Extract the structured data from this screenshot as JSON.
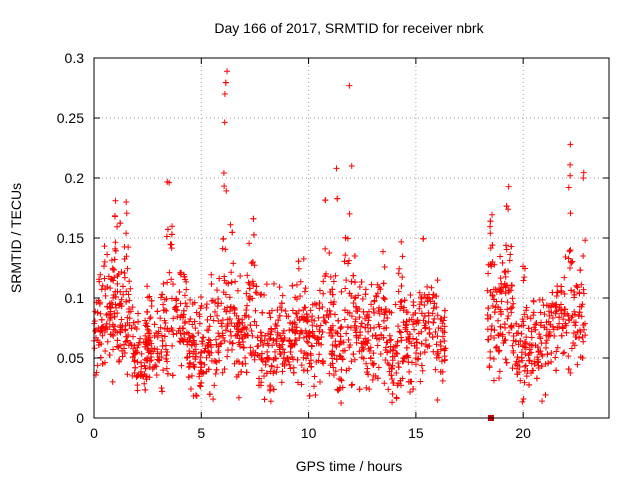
{
  "chart_data": {
    "type": "scatter",
    "title": "Day 166 of 2017, SRMTID for receiver nbrk",
    "xlabel": "GPS time / hours",
    "ylabel": "SRMTID / TECUs",
    "xlim": [
      0,
      24
    ],
    "ylim": [
      0,
      0.3
    ],
    "x_ticks": [
      0,
      5,
      10,
      15,
      20
    ],
    "x_tick_labels": [
      "0",
      "5",
      "10",
      "15",
      "20"
    ],
    "y_ticks": [
      0,
      0.05,
      0.1,
      0.15,
      0.2,
      0.25,
      0.3
    ],
    "y_tick_labels": [
      "0",
      "0.05",
      "0.1",
      "0.15",
      "0.2",
      "0.25",
      "0.3"
    ],
    "grid": true,
    "marker": "+",
    "colors": {
      "points": "#ff0000",
      "square": "#cc0000",
      "grid": "#a0a0a0",
      "axis": "#000000"
    },
    "segments": [
      {
        "x_start": 0.0,
        "x_end": 16.4,
        "base": 0.065,
        "spread": 0.02
      },
      {
        "x_start": 18.3,
        "x_end": 22.9,
        "base": 0.07,
        "spread": 0.02
      }
    ],
    "bursts": [
      {
        "x": 0.5,
        "peak": 0.12
      },
      {
        "x": 1.0,
        "peak": 0.18
      },
      {
        "x": 1.5,
        "peak": 0.18
      },
      {
        "x": 3.5,
        "peak": 0.195
      },
      {
        "x": 4.2,
        "peak": 0.13
      },
      {
        "x": 5.7,
        "peak": 0.16
      },
      {
        "x": 6.2,
        "peak": 0.29
      },
      {
        "x": 7.4,
        "peak": 0.16
      },
      {
        "x": 8.0,
        "peak": 0.15
      },
      {
        "x": 10.8,
        "peak": 0.175
      },
      {
        "x": 11.3,
        "peak": 0.21
      },
      {
        "x": 11.9,
        "peak": 0.275
      },
      {
        "x": 13.5,
        "peak": 0.13
      },
      {
        "x": 14.3,
        "peak": 0.145
      },
      {
        "x": 15.3,
        "peak": 0.13
      },
      {
        "x": 18.5,
        "peak": 0.165
      },
      {
        "x": 19.3,
        "peak": 0.17
      },
      {
        "x": 20.0,
        "peak": 0.125
      },
      {
        "x": 22.2,
        "peak": 0.225
      },
      {
        "x": 22.8,
        "peak": 0.2
      }
    ],
    "point_count": 2200,
    "outlier_square": {
      "x": 18.5,
      "y": 0.0
    },
    "notable_points": [
      {
        "x": 6.2,
        "y": 0.289
      },
      {
        "x": 11.9,
        "y": 0.277
      },
      {
        "x": 6.1,
        "y": 0.27
      },
      {
        "x": 22.2,
        "y": 0.228
      },
      {
        "x": 11.3,
        "y": 0.208
      },
      {
        "x": 22.8,
        "y": 0.2
      },
      {
        "x": 3.5,
        "y": 0.196
      },
      {
        "x": 1.0,
        "y": 0.181
      },
      {
        "x": 1.5,
        "y": 0.18
      },
      {
        "x": 19.3,
        "y": 0.174
      },
      {
        "x": 16.0,
        "y": 0.015
      }
    ]
  }
}
